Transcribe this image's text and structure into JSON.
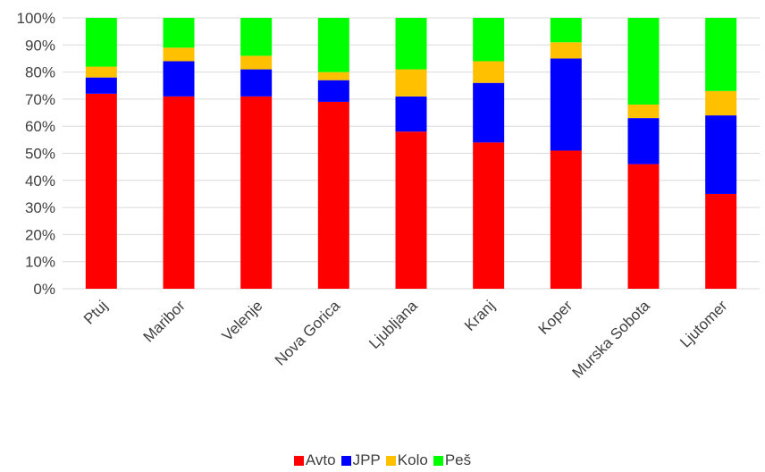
{
  "chart_data": {
    "type": "bar",
    "stacked": true,
    "percent": true,
    "categories": [
      "Ptuj",
      "Maribor",
      "Velenje",
      "Nova Gorica",
      "Ljubljana",
      "Kranj",
      "Koper",
      "Murska Sobota",
      "Ljutomer"
    ],
    "series": [
      {
        "name": "Avto",
        "color": "#ff0000",
        "values": [
          72,
          71,
          71,
          69,
          58,
          54,
          51,
          46,
          35
        ]
      },
      {
        "name": "JPP",
        "color": "#0000ff",
        "values": [
          6,
          13,
          10,
          8,
          13,
          22,
          34,
          17,
          29
        ]
      },
      {
        "name": "Kolo",
        "color": "#ffc000",
        "values": [
          4,
          5,
          5,
          3,
          10,
          8,
          6,
          5,
          9
        ]
      },
      {
        "name": "Peš",
        "color": "#00ff00",
        "values": [
          18,
          11,
          14,
          20,
          19,
          16,
          9,
          32,
          27
        ]
      }
    ],
    "yticks": [
      "0%",
      "10%",
      "20%",
      "30%",
      "40%",
      "50%",
      "60%",
      "70%",
      "80%",
      "90%",
      "100%"
    ],
    "ylim": [
      0,
      100
    ],
    "grid": true,
    "legend_position": "bottom"
  }
}
